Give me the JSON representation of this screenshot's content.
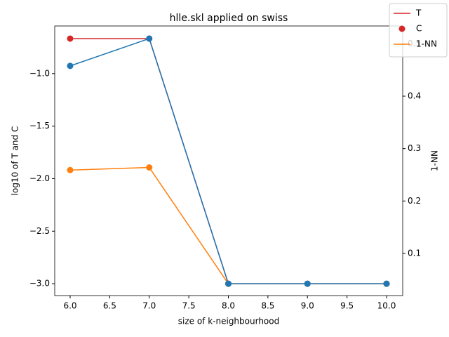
{
  "chart_data": {
    "type": "line",
    "title": "hlle.skl applied on swiss",
    "x_label": "size of k-neighbourhood",
    "y_label": "log10 of T and C",
    "y2_label": "1-NN",
    "x": [
      6,
      7,
      8,
      9,
      10
    ],
    "series": [
      {
        "name": "T",
        "color": "#d62728",
        "mode": "line",
        "values": [
          -0.667,
          -0.667,
          -3.0,
          -3.0,
          -3.0
        ]
      },
      {
        "name": "C",
        "color": "#d62728",
        "mode": "markers",
        "values": [
          -0.667,
          -0.667,
          -3.0,
          -3.0,
          -3.0
        ]
      },
      {
        "name": "1-NN",
        "color": "#ff7f0e",
        "mode": "line+markers",
        "axis": "y2",
        "values": [
          0.259,
          0.264,
          0.042,
          0.042,
          0.042
        ]
      },
      {
        "color": "#1f77b4",
        "mode": "line+markers",
        "values": [
          -0.927,
          -0.667,
          -3.0,
          -3.0,
          -3.0
        ]
      }
    ],
    "xlim": [
      5.805,
      10.204
    ],
    "xticks": [
      {
        "value": 6,
        "label": "6.0"
      },
      {
        "value": 6.5,
        "label": "6.5"
      },
      {
        "value": 7,
        "label": "7.0"
      },
      {
        "value": 7.5,
        "label": "7.5"
      },
      {
        "value": 8,
        "label": "8.0"
      },
      {
        "value": 8.5,
        "label": "8.5"
      },
      {
        "value": 9,
        "label": "9.0"
      },
      {
        "value": 9.5,
        "label": "9.5"
      },
      {
        "value": 10,
        "label": "10.0"
      }
    ],
    "ylim": [
      -3.113,
      -0.547
    ],
    "yticks": [
      {
        "value": -3,
        "label": "−3.0"
      },
      {
        "value": -2.5,
        "label": "−2.5"
      },
      {
        "value": -2,
        "label": "−2.0"
      },
      {
        "value": -1.5,
        "label": "−1.5"
      },
      {
        "value": -1,
        "label": "−1.0"
      }
    ],
    "y2lim": [
      0.0195,
      0.534
    ],
    "y2ticks": [
      0.1,
      0.2,
      0.3,
      0.4,
      0.5
    ],
    "legend": "upper right"
  }
}
